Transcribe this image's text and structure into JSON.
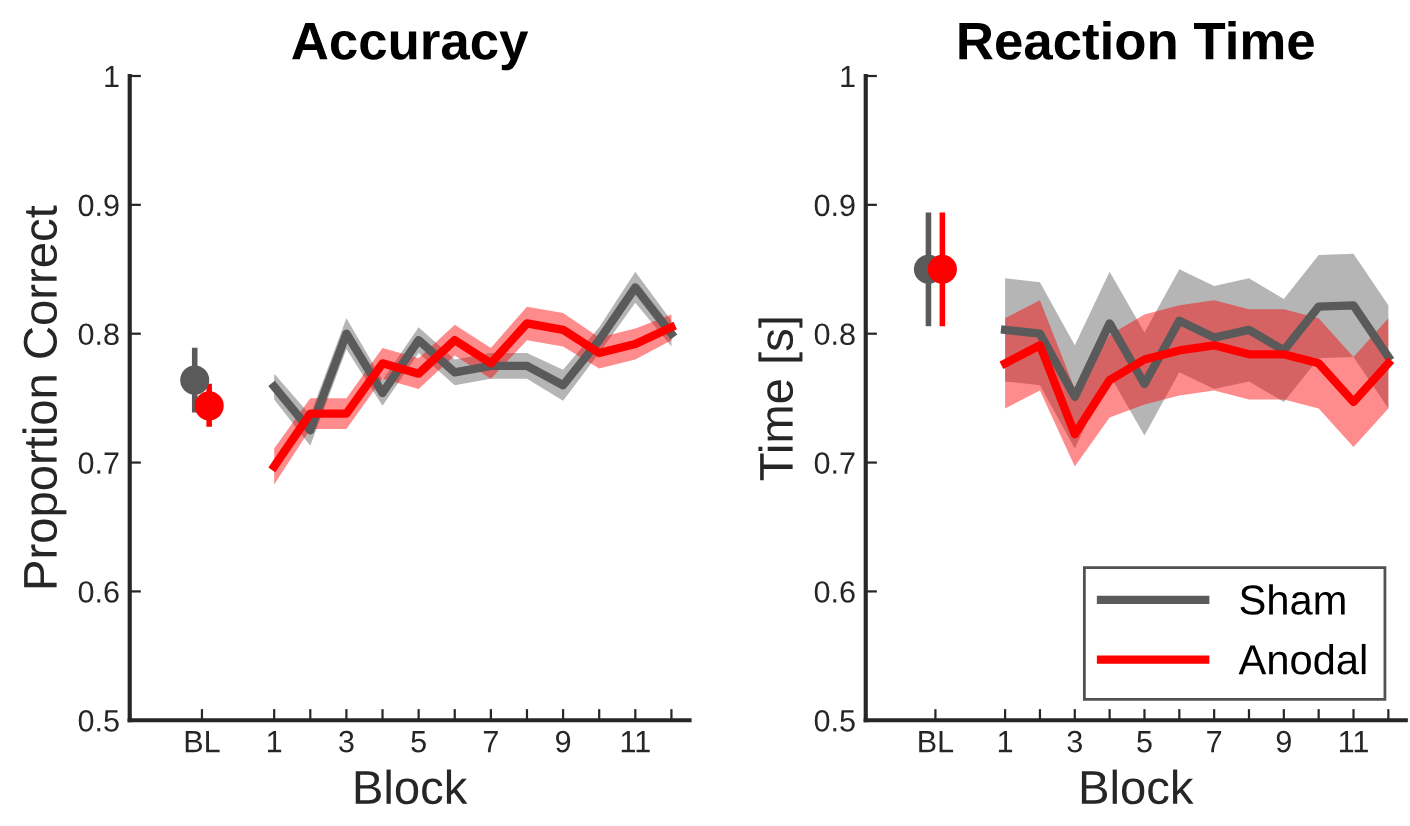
{
  "chart_data": [
    {
      "type": "line",
      "title": "Accuracy",
      "xlabel": "Block",
      "ylabel": "Proportion Correct",
      "xlim": [
        -3,
        12.5
      ],
      "xticks": [
        {
          "value": -1,
          "label": "BL"
        },
        1,
        {
          "value": 2,
          "label": null
        },
        3,
        {
          "value": 4,
          "label": null
        },
        5,
        {
          "value": 6,
          "label": null
        },
        7,
        {
          "value": 8,
          "label": null
        },
        9,
        {
          "value": 10,
          "label": null
        },
        11,
        {
          "value": 12,
          "label": null
        }
      ],
      "ylim": [
        0.5,
        1
      ],
      "yticks": [
        0.5,
        0.6,
        0.7,
        0.8,
        0.9,
        1
      ],
      "grid": false,
      "legend": false,
      "series": [
        {
          "color": "#5a5a5a",
          "x": [
            1,
            2,
            3,
            4,
            5,
            6,
            7,
            8,
            9,
            10,
            11,
            12
          ],
          "values": [
            0.759,
            0.725,
            0.8,
            0.754,
            0.795,
            0.77,
            0.775,
            0.775,
            0.76,
            0.795,
            0.836,
            0.8
          ],
          "lower": [
            0.749,
            0.713,
            0.788,
            0.744,
            0.785,
            0.76,
            0.765,
            0.765,
            0.748,
            0.785,
            0.824,
            0.79
          ],
          "upper": [
            0.769,
            0.737,
            0.812,
            0.764,
            0.805,
            0.78,
            0.785,
            0.785,
            0.772,
            0.805,
            0.848,
            0.81
          ]
        },
        {
          "color": "#ff0000",
          "x": [
            1,
            2,
            3,
            4,
            5,
            6,
            7,
            8,
            9,
            10,
            11,
            12
          ],
          "values": [
            0.697,
            0.738,
            0.738,
            0.777,
            0.769,
            0.795,
            0.777,
            0.808,
            0.803,
            0.785,
            0.792,
            0.805
          ],
          "lower": [
            0.683,
            0.726,
            0.726,
            0.765,
            0.757,
            0.783,
            0.765,
            0.795,
            0.79,
            0.773,
            0.78,
            0.795
          ],
          "upper": [
            0.711,
            0.75,
            0.75,
            0.789,
            0.781,
            0.807,
            0.789,
            0.821,
            0.816,
            0.797,
            0.804,
            0.815
          ]
        },
        {
          "type": "scatter",
          "marker": "circle",
          "color": "#5a5a5a",
          "x": [
            -1.2
          ],
          "values": [
            0.764
          ],
          "errors": [
            [
              0.741,
              0.787
            ]
          ]
        },
        {
          "type": "scatter",
          "marker": "circle",
          "color": "#ff0000",
          "x": [
            -0.8
          ],
          "values": [
            0.744
          ],
          "errors": [
            [
              0.73,
              0.759
            ]
          ]
        }
      ]
    },
    {
      "type": "line",
      "title": "Reaction Time",
      "xlabel": "Block",
      "ylabel": "Time [s]",
      "xlim": [
        -3,
        12.5
      ],
      "xticks": [
        {
          "value": -1,
          "label": "BL"
        },
        1,
        {
          "value": 2,
          "label": null
        },
        3,
        {
          "value": 4,
          "label": null
        },
        5,
        {
          "value": 6,
          "label": null
        },
        7,
        {
          "value": 8,
          "label": null
        },
        9,
        {
          "value": 10,
          "label": null
        },
        11,
        {
          "value": 12,
          "label": null
        }
      ],
      "ylim": [
        0.5,
        1
      ],
      "yticks": [
        0.5,
        0.6,
        0.7,
        0.8,
        0.9,
        1
      ],
      "grid": false,
      "legend": "bottom right",
      "series": [
        {
          "name": "Sham",
          "color": "#5a5a5a",
          "x": [
            1,
            2,
            3,
            4,
            5,
            6,
            7,
            8,
            9,
            10,
            11,
            12
          ],
          "values": [
            0.803,
            0.8,
            0.751,
            0.808,
            0.761,
            0.81,
            0.797,
            0.803,
            0.787,
            0.821,
            0.822,
            0.782
          ],
          "lower": [
            0.763,
            0.76,
            0.711,
            0.768,
            0.721,
            0.77,
            0.757,
            0.763,
            0.747,
            0.781,
            0.782,
            0.742
          ],
          "upper": [
            0.843,
            0.84,
            0.791,
            0.848,
            0.801,
            0.85,
            0.837,
            0.843,
            0.827,
            0.861,
            0.862,
            0.822
          ]
        },
        {
          "name": "Anodal",
          "color": "#ff0000",
          "x": [
            1,
            2,
            3,
            4,
            5,
            6,
            7,
            8,
            9,
            10,
            11,
            12
          ],
          "values": [
            0.777,
            0.791,
            0.722,
            0.764,
            0.78,
            0.787,
            0.791,
            0.784,
            0.784,
            0.777,
            0.747,
            0.777
          ],
          "lower": [
            0.742,
            0.756,
            0.697,
            0.735,
            0.745,
            0.752,
            0.756,
            0.749,
            0.749,
            0.742,
            0.712,
            0.742
          ],
          "upper": [
            0.812,
            0.826,
            0.757,
            0.799,
            0.815,
            0.822,
            0.826,
            0.819,
            0.819,
            0.812,
            0.782,
            0.812
          ]
        },
        {
          "type": "scatter",
          "marker": "circle",
          "color": "#5a5a5a",
          "x": [
            -1.2
          ],
          "values": [
            0.85
          ],
          "errors": [
            [
              0.808,
              0.892
            ]
          ]
        },
        {
          "type": "scatter",
          "marker": "circle",
          "color": "#ff0000",
          "x": [
            -0.8
          ],
          "values": [
            0.85
          ],
          "errors": [
            [
              0.808,
              0.892
            ]
          ]
        }
      ]
    }
  ]
}
